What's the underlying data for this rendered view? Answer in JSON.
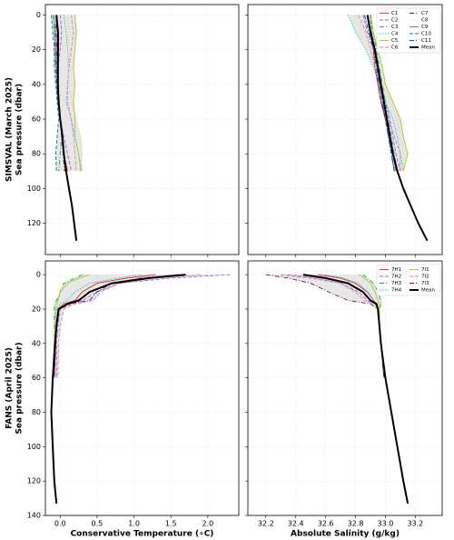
{
  "chart_data": [
    {
      "type": "line",
      "row_label": "SIMSVAL (March 2025)",
      "y_label": "Sea pressure (dbar)",
      "xlim": [
        -0.2,
        2.42
      ],
      "ylim": [
        138,
        -6
      ],
      "xtick_labels": false,
      "ytick_labels": true,
      "legend": false,
      "grid": true,
      "xticks": [
        {
          "value": 0,
          "label": "0.0"
        },
        0.5,
        {
          "value": 1,
          "label": "1.0"
        },
        1.5,
        {
          "value": 2,
          "label": "2.0"
        }
      ],
      "yticks": [
        0,
        20,
        40,
        60,
        80,
        100,
        120
      ],
      "pressure": [
        0,
        10,
        20,
        30,
        40,
        50,
        60,
        70,
        80,
        90,
        100,
        110,
        120,
        130
      ],
      "series": [
        {
          "name": "C1",
          "color": "#d62728",
          "dash": "solid",
          "values": [
            -0.05,
            -0.02,
            -0.02,
            -0.03,
            -0.03,
            -0.02,
            0.0,
            0.02,
            0.05,
            0.1,
            null,
            null,
            null,
            null
          ]
        },
        {
          "name": "C2",
          "color": "#9467bd",
          "dash": "dashed",
          "values": [
            0.0,
            0.02,
            0.0,
            -0.03,
            -0.05,
            -0.03,
            0.0,
            0.05,
            0.1,
            0.15,
            null,
            null,
            null,
            null
          ]
        },
        {
          "name": "C3",
          "color": "#2a9d6f",
          "dash": "dashdot",
          "values": [
            -0.1,
            -0.08,
            -0.06,
            -0.06,
            -0.05,
            -0.03,
            0.0,
            0.02,
            0.0,
            -0.02,
            null,
            null,
            null,
            null
          ]
        },
        {
          "name": "C4",
          "color": "#17becf",
          "dash": "dotted",
          "values": [
            0.05,
            0.08,
            0.1,
            0.12,
            0.1,
            0.08,
            0.15,
            0.2,
            0.25,
            0.3,
            null,
            null,
            null,
            null
          ]
        },
        {
          "name": "C5",
          "color": "#9acd32",
          "dash": "solid",
          "values": [
            0.2,
            0.22,
            0.2,
            0.18,
            0.2,
            0.18,
            0.2,
            0.2,
            0.25,
            0.28,
            null,
            null,
            null,
            null
          ]
        },
        {
          "name": "C6",
          "color": "#e377c2",
          "dash": "dashed",
          "values": [
            0.15,
            0.18,
            0.15,
            0.12,
            0.1,
            0.1,
            0.15,
            0.18,
            0.2,
            0.22,
            null,
            null,
            null,
            null
          ]
        },
        {
          "name": "C7",
          "color": "#5b1a4a",
          "dash": "dashdot",
          "values": [
            -0.05,
            -0.04,
            -0.05,
            -0.05,
            -0.04,
            -0.02,
            0.0,
            0.02,
            0.05,
            0.08,
            null,
            null,
            null,
            null
          ]
        },
        {
          "name": "C8",
          "color": "#e8d96a",
          "dash": "dotted",
          "values": [
            0.1,
            0.12,
            0.1,
            0.1,
            0.12,
            0.15,
            0.22,
            0.28,
            0.3,
            0.25,
            null,
            null,
            null,
            null
          ]
        },
        {
          "name": "C9",
          "color": "#5f7f6f",
          "dash": "solid",
          "values": [
            -0.08,
            -0.07,
            -0.06,
            -0.05,
            -0.03,
            -0.02,
            0.0,
            0.03,
            0.05,
            0.07,
            null,
            null,
            null,
            null
          ]
        },
        {
          "name": "C10",
          "color": "#1f6f8b",
          "dash": "dashed",
          "values": [
            -0.12,
            -0.1,
            -0.08,
            -0.08,
            -0.06,
            -0.04,
            -0.02,
            -0.04,
            -0.06,
            -0.05,
            null,
            null,
            null,
            null
          ]
        },
        {
          "name": "C11",
          "color": "#1f3fb4",
          "dash": "dashdot",
          "values": [
            -0.05,
            -0.06,
            -0.08,
            -0.06,
            -0.04,
            -0.02,
            0.0,
            0.02,
            0.04,
            0.06,
            null,
            null,
            null,
            null
          ]
        },
        {
          "name": "Mean",
          "color": "#000000",
          "dash": "solid",
          "width": 2,
          "values": [
            -0.05,
            -0.03,
            -0.03,
            -0.03,
            -0.03,
            -0.02,
            0.0,
            0.03,
            0.05,
            0.08,
            0.12,
            0.16,
            0.19,
            0.22
          ]
        }
      ]
    },
    {
      "type": "line",
      "xlim": [
        32.08,
        33.38
      ],
      "ylim": [
        138,
        -6
      ],
      "xtick_labels": false,
      "ytick_labels": false,
      "legend": true,
      "grid": true,
      "xticks": [
        32.2,
        32.4,
        32.6,
        32.8,
        {
          "value": 33,
          "label": "33.0"
        },
        33.2
      ],
      "yticks": [
        0,
        20,
        40,
        60,
        80,
        100,
        120
      ],
      "pressure": [
        0,
        10,
        20,
        30,
        40,
        50,
        60,
        70,
        80,
        90,
        100,
        110,
        120,
        130
      ],
      "series": [
        {
          "name": "C1",
          "color": "#d62728",
          "dash": "solid",
          "values": [
            32.88,
            32.9,
            32.92,
            32.93,
            32.95,
            32.97,
            33.0,
            33.03,
            33.05,
            33.08,
            null,
            null,
            null,
            null
          ]
        },
        {
          "name": "C2",
          "color": "#9467bd",
          "dash": "dashed",
          "values": [
            32.85,
            32.88,
            32.92,
            32.95,
            32.97,
            33.0,
            33.03,
            33.05,
            33.07,
            33.1,
            null,
            null,
            null,
            null
          ]
        },
        {
          "name": "C3",
          "color": "#2a9d6f",
          "dash": "dashdot",
          "values": [
            32.9,
            32.92,
            32.94,
            32.96,
            32.98,
            33.0,
            33.02,
            33.04,
            33.06,
            33.08,
            null,
            null,
            null,
            null
          ]
        },
        {
          "name": "C4",
          "color": "#17becf",
          "dash": "dotted",
          "values": [
            32.75,
            32.8,
            32.87,
            32.92,
            32.96,
            33.0,
            33.05,
            33.08,
            33.1,
            33.12,
            null,
            null,
            null,
            null
          ]
        },
        {
          "name": "C5",
          "color": "#9acd32",
          "dash": "solid",
          "values": [
            32.9,
            32.92,
            32.95,
            32.98,
            33.0,
            33.05,
            33.1,
            33.12,
            33.15,
            33.12,
            null,
            null,
            null,
            null
          ]
        },
        {
          "name": "C6",
          "color": "#e377c2",
          "dash": "dashed",
          "values": [
            32.82,
            32.87,
            32.9,
            32.93,
            32.96,
            32.99,
            33.02,
            33.06,
            33.1,
            33.1,
            null,
            null,
            null,
            null
          ]
        },
        {
          "name": "C7",
          "color": "#5b1a4a",
          "dash": "dashdot",
          "values": [
            32.88,
            32.9,
            32.92,
            32.94,
            32.95,
            32.97,
            33.0,
            33.02,
            33.04,
            33.06,
            null,
            null,
            null,
            null
          ]
        },
        {
          "name": "C8",
          "color": "#e8d96a",
          "dash": "dotted",
          "values": [
            32.8,
            32.86,
            32.9,
            32.94,
            32.98,
            33.03,
            33.08,
            33.1,
            33.12,
            33.12,
            null,
            null,
            null,
            null
          ]
        },
        {
          "name": "C9",
          "color": "#5f7f6f",
          "dash": "solid",
          "values": [
            32.88,
            32.9,
            32.93,
            32.95,
            32.97,
            32.99,
            33.01,
            33.03,
            33.05,
            33.07,
            null,
            null,
            null,
            null
          ]
        },
        {
          "name": "C10",
          "color": "#1f6f8b",
          "dash": "dashed",
          "values": [
            32.9,
            32.91,
            32.93,
            32.95,
            32.96,
            32.98,
            33.0,
            33.02,
            33.04,
            33.06,
            null,
            null,
            null,
            null
          ]
        },
        {
          "name": "C11",
          "color": "#1f3fb4",
          "dash": "dashdot",
          "values": [
            32.86,
            32.89,
            32.92,
            32.94,
            32.96,
            32.98,
            33.0,
            33.02,
            33.04,
            33.06,
            null,
            null,
            null,
            null
          ]
        },
        {
          "name": "Mean",
          "color": "#000000",
          "dash": "solid",
          "width": 2,
          "values": [
            32.88,
            32.9,
            32.93,
            32.95,
            32.97,
            32.99,
            33.01,
            33.03,
            33.05,
            33.08,
            33.12,
            33.17,
            33.22,
            33.28
          ]
        }
      ]
    },
    {
      "type": "line",
      "row_label": "FANS (April 2025)",
      "y_label": "Sea pressure (dbar)",
      "x_label": "Conservative Temperature (∘C)",
      "xlim": [
        -0.2,
        2.42
      ],
      "ylim": [
        140,
        -8
      ],
      "xtick_labels": true,
      "ytick_labels": true,
      "legend": false,
      "grid": true,
      "xticks": [
        {
          "value": 0,
          "label": "0.0"
        },
        0.5,
        {
          "value": 1,
          "label": "1.0"
        },
        1.5,
        {
          "value": 2,
          "label": "2.0"
        }
      ],
      "yticks": [
        0,
        20,
        40,
        60,
        80,
        100,
        120,
        140
      ],
      "pressure": [
        0,
        2,
        5,
        10,
        15,
        17,
        20,
        30,
        40,
        60,
        80,
        100,
        120,
        133
      ],
      "series": [
        {
          "name": "7H1",
          "color": "#d62728",
          "dash": "solid",
          "values": [
            1.3,
            0.9,
            0.5,
            0.3,
            0.2,
            0.05,
            -0.03,
            -0.05,
            -0.06,
            -0.08,
            null,
            null,
            null,
            null
          ]
        },
        {
          "name": "7H2",
          "color": "#9467bd",
          "dash": "dashed",
          "values": [
            2.3,
            1.5,
            0.8,
            0.5,
            0.3,
            0.15,
            0.0,
            -0.03,
            -0.05,
            -0.05,
            null,
            null,
            null,
            null
          ]
        },
        {
          "name": "7H3",
          "color": "#2ca02c",
          "dash": "dashdot",
          "values": [
            0.3,
            0.2,
            0.05,
            0.0,
            -0.05,
            -0.08,
            -0.08,
            -0.08,
            -0.08,
            -0.1,
            null,
            null,
            null,
            null
          ]
        },
        {
          "name": "7H4",
          "color": "#17becf",
          "dash": "dotted",
          "values": [
            1.1,
            0.8,
            0.4,
            0.2,
            0.1,
            0.0,
            -0.05,
            -0.06,
            -0.07,
            -0.08,
            null,
            null,
            null,
            null
          ]
        },
        {
          "name": "7I1",
          "color": "#9acd32",
          "dash": "solid",
          "values": [
            0.4,
            0.25,
            0.1,
            0.0,
            -0.03,
            -0.05,
            -0.06,
            -0.07,
            -0.08,
            -0.09,
            null,
            null,
            null,
            null
          ]
        },
        {
          "name": "7I2",
          "color": "#e377c2",
          "dash": "dashed",
          "values": [
            1.9,
            1.3,
            0.8,
            0.55,
            0.45,
            0.2,
            0.05,
            0.0,
            -0.02,
            -0.03,
            null,
            null,
            null,
            null
          ]
        },
        {
          "name": "7I3",
          "color": "#5b1a4a",
          "dash": "dashdot",
          "values": [
            1.6,
            1.1,
            0.7,
            0.5,
            0.4,
            0.1,
            -0.02,
            -0.05,
            -0.06,
            -0.08,
            null,
            null,
            null,
            null
          ]
        },
        {
          "name": "Mean",
          "color": "#000000",
          "dash": "solid",
          "width": 2,
          "values": [
            1.7,
            1.2,
            0.7,
            0.4,
            0.25,
            0.1,
            -0.02,
            -0.05,
            -0.07,
            -0.1,
            -0.12,
            -0.1,
            -0.08,
            -0.05
          ]
        }
      ]
    },
    {
      "type": "line",
      "x_label": "Absolute Salinity (g/kg)",
      "xlim": [
        32.08,
        33.38
      ],
      "ylim": [
        140,
        -8
      ],
      "xtick_labels": true,
      "ytick_labels": false,
      "legend": true,
      "grid": true,
      "xticks": [
        32.2,
        32.4,
        32.6,
        32.8,
        {
          "value": 33,
          "label": "33.0"
        },
        33.2
      ],
      "yticks": [
        0,
        20,
        40,
        60,
        80,
        100,
        120,
        140
      ],
      "pressure": [
        0,
        2,
        5,
        10,
        15,
        17,
        20,
        30,
        40,
        60,
        80,
        100,
        120,
        133
      ],
      "series": [
        {
          "name": "7H1",
          "color": "#d62728",
          "dash": "solid",
          "values": [
            32.55,
            32.7,
            32.8,
            32.88,
            32.92,
            32.94,
            32.95,
            32.96,
            32.97,
            32.99,
            null,
            null,
            null,
            null
          ]
        },
        {
          "name": "7H2",
          "color": "#9467bd",
          "dash": "dashed",
          "values": [
            32.3,
            32.5,
            32.7,
            32.82,
            32.88,
            32.93,
            32.95,
            32.96,
            32.97,
            33.0,
            null,
            null,
            null,
            null
          ]
        },
        {
          "name": "7H3",
          "color": "#2ca02c",
          "dash": "dashdot",
          "values": [
            32.85,
            32.88,
            32.92,
            32.95,
            32.97,
            32.97,
            32.96,
            32.96,
            32.97,
            32.99,
            null,
            null,
            null,
            null
          ]
        },
        {
          "name": "7H4",
          "color": "#17becf",
          "dash": "dotted",
          "values": [
            32.6,
            32.72,
            32.82,
            32.88,
            32.92,
            32.94,
            32.95,
            32.96,
            32.97,
            32.99,
            null,
            null,
            null,
            null
          ]
        },
        {
          "name": "7I1",
          "color": "#9acd32",
          "dash": "solid",
          "values": [
            32.82,
            32.86,
            32.9,
            32.93,
            32.95,
            32.96,
            32.96,
            32.96,
            32.97,
            32.99,
            null,
            null,
            null,
            null
          ]
        },
        {
          "name": "7I2",
          "color": "#e377c2",
          "dash": "dashed",
          "values": [
            32.35,
            32.55,
            32.7,
            32.8,
            32.86,
            32.93,
            32.95,
            32.96,
            32.97,
            32.99,
            null,
            null,
            null,
            null
          ]
        },
        {
          "name": "7I3",
          "color": "#5b1a4a",
          "dash": "dashdot",
          "values": [
            32.2,
            32.35,
            32.5,
            32.62,
            32.75,
            32.9,
            32.95,
            32.96,
            32.97,
            32.99,
            null,
            null,
            null,
            null
          ]
        },
        {
          "name": "Mean",
          "color": "#000000",
          "dash": "solid",
          "width": 2,
          "values": [
            32.45,
            32.6,
            32.75,
            32.85,
            32.9,
            32.94,
            32.95,
            32.96,
            32.97,
            33.0,
            33.04,
            33.08,
            33.12,
            33.15
          ]
        }
      ]
    }
  ]
}
